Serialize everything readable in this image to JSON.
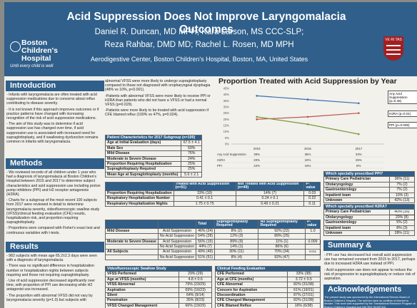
{
  "header": {
    "title": "Acid Suppression Does Not Improve Laryngomalacia Outcomes",
    "authors_line1": "Daniel R. Duncan, MD MPH; Kara Larson, MS CCC-SLP;",
    "authors_line2": "Reza Rahbar, DMD MD; Rachel L. Rosen, MD MPH",
    "affiliation": "Aerodigestive Center, Boston Children's Hospital, Boston, MA, United States",
    "logo_name": "Boston Children's Hospital",
    "logo_tagline": "Until every child is well",
    "crest_text": "VE RI TAS"
  },
  "intro": {
    "heading": "Introduction",
    "paras": [
      "- Infants with laryngomalacia are often treated with acid suppression medications due to concerns about reflux contributing to disease severity.",
      "- It is not known if this approach improves outcomes or if practice patterns have changed with increasing recognition of the risk of acid suppression medications.",
      "- The aim of this study was to determine if acid suppression use has changed over time, if acid suppression use is associated with increased need for supraglottoplasty, and if swallowing dysfunction remains common in infants with laryngomalacia."
    ]
  },
  "methods": {
    "heading": "Methods",
    "paras": [
      "- We reviewed records of all children under 1 year who had a diagnosis of laryngomalacia at Boston Children's Hospital between 2015 and 2017 to determine subject characteristics and acid suppression use including proton pump inhibitors (PPI) and H2 receptor antagonists (H2RA).",
      "- Charts for a subgroup of the most recent 100 subjects from 2017 were reviewed in detail to determine laryngomalacia severity, videofluoroscopic swallow study (VFSS)/clinical feeding evaluation (CFE) results, hospitalization risk, and proportion requiring supraglottoplasty.",
      "- Proportions were compared with Fisher's exact test and continuous variables with t-tests."
    ]
  },
  "results": {
    "heading": "Results",
    "paras": [
      "- 982 subjects with mean age 65.2±2.3 days were seen with a diagnosis of laryngomalacia.",
      "- There was no significant difference in hospitalization number or hospitalization nights between subjects requiring and those not requiring supraglottoplasty.",
      "- Use of acid suppression decreased significantly over time, with proportion of PPI use decreasing while H2 antagonist use increased.",
      "- The proportion with abnormal VFSS did not vary by laryngomalacia severity (p=1.0) but subjects with"
    ]
  },
  "mid_text": {
    "paras": [
      "abnormal VFSS were more likely to undergo supraglottoplasty compared to those not diagnosed with oropharyngeal dysphagia (48% vs 10%, p<0.001).",
      "-Patients with abnormal VFSS were more likely to receive PPI or H2RA than patients who did not have a VFSS or had a normal VFSS (p=0.029).",
      "-Patients were more likely to be treated with acid suppression if CFE blamed reflux (100% vs 47%, p=0.024)."
    ]
  },
  "patient_table": {
    "header": [
      "Patient Characteristics for 2017 Subgroup (n=100)",
      ""
    ],
    "rows": [
      [
        "Age at Initial Evaluation (days)",
        "67.5 ± 4.1"
      ],
      [
        "Male Sex",
        "59%"
      ],
      [
        "Mild Disease",
        "76%"
      ],
      [
        "Moderate to Severe Disease",
        "24%"
      ],
      [
        "Proportion Requiring Hospitalization",
        "25%"
      ],
      [
        "Supraglottoplasty Required",
        "25%"
      ],
      [
        "Mean Age at Supraglottoplasty (months)",
        "5.6 ± 2.1"
      ]
    ]
  },
  "treated_table": {
    "header": [
      "",
      "Treated with Acid Suppression (n=51)",
      "Not Treated with Acid Suppression (n=49)",
      "P-value"
    ],
    "rows": [
      [
        "Proportion Requiring Hospitalization",
        "33% (10)",
        "14% (7)",
        "0.03"
      ],
      [
        "Respiratory Hospitalization Number",
        "0.41 ± 0.1",
        "0.24 ± 0.1",
        "0.22"
      ],
      [
        "Respiratory Hospitalization Nights",
        "1.75 ± 0.75",
        "0.49 ± 0.21",
        "0.11"
      ]
    ]
  },
  "severity_table": {
    "header": [
      "",
      "",
      "Total",
      "Supraglottoplasty Required",
      "No Supraglottoplasty Required",
      "P-value"
    ],
    "rows": [
      [
        "Mild Disease",
        "Acid Suppression",
        "46% (24)",
        "8% (2)",
        "92% (22)",
        "1.0"
      ],
      [
        "",
        "No Acid Suppression",
        "54% (28)",
        "12% (3)",
        "89% (25)",
        ""
      ],
      [
        "Moderate to Severe Disease",
        "Acid Suppression",
        "56% (15)",
        "89% (9)",
        "11% (1)",
        "0.009"
      ],
      [
        "",
        "No Acid Suppression",
        "44% (7)",
        "14% (1)",
        "86% (6)",
        ""
      ],
      [
        "All Subjects",
        "Acid Suppression",
        "49% (49)",
        "30% (11)",
        "70% (34)",
        "0.01"
      ],
      [
        "",
        "No Acid Suppression",
        "51% (51)",
        "8% (4)",
        "92% (47)",
        ""
      ]
    ]
  },
  "vfss_table": {
    "header": [
      "Videofluoroscopic Swallow Study",
      ""
    ],
    "rows": [
      [
        "VFSS Performed",
        "29% (29)"
      ],
      [
        "Age at VFSS (months)",
        "4.8 ± 0.6"
      ],
      [
        "VFSS Abnormal",
        "79% (23/29)"
      ],
      [
        "Aspiration",
        "69% (16/23)"
      ],
      [
        "Silent",
        "64% (9/14)"
      ],
      [
        "Penetration",
        "35% (8/23)"
      ],
      [
        "VFSS Changed Management",
        "66% (19/29)"
      ]
    ]
  },
  "cfe_table": {
    "header": [
      "Clinical Feeding Evaluation",
      ""
    ],
    "rows": [
      [
        "CFE Performed",
        "33% (38)"
      ],
      [
        "Age at CFE (months)",
        "3.72 ± 0.5"
      ],
      [
        "CFE Abnormal",
        "82% (31/38)"
      ],
      [
        "Concern for Aspiration",
        "61% (19/31)"
      ],
      [
        "Discoordination",
        "87% (27/31)"
      ],
      [
        "CFE Changed Management",
        "82% (31/38)"
      ],
      [
        "CFE Blamed Reflux",
        "16% (6/38)"
      ]
    ]
  },
  "chart_data": {
    "type": "line",
    "title": "Proportion Treated with Acid Suppression by Year",
    "categories": [
      "2015",
      "2016",
      "2017"
    ],
    "series": [
      {
        "name": "Any Acid Suppression (p=0.46)",
        "table_label": "Any Acid Suppression",
        "values": [
          39,
          36,
          33
        ],
        "color": "#3a6fb0"
      },
      {
        "name": "H2RA (p=0.01)",
        "table_label": "H2RA",
        "values": [
          20,
          22,
          25
        ],
        "color": "#c0504d"
      },
      {
        "name": "PPI (p=0.009)",
        "table_label": "PPI",
        "values": [
          22,
          16,
          8
        ],
        "color": "#7a9a3a"
      }
    ],
    "table_values": [
      [
        "39%",
        "36%",
        "33%"
      ],
      [
        "20%",
        "22%",
        "25%"
      ],
      [
        "22%",
        "16%",
        "8%"
      ]
    ],
    "y_ticks": [
      "0%",
      "5%",
      "10%",
      "15%",
      "20%",
      "25%",
      "30%",
      "35%",
      "40%",
      "45%"
    ],
    "ylim": [
      0,
      45
    ],
    "grid": false
  },
  "ppi_table": {
    "header": [
      "Which specialty prescribed PPI?",
      ""
    ],
    "rows": [
      [
        "Primary Care Pediatrician",
        "36% (11)"
      ],
      [
        "Otolaryngology",
        "7% (2)"
      ],
      [
        "Gastroenterology",
        "7% (2)"
      ],
      [
        "Inpatient team",
        "10% (3)"
      ],
      [
        "Unknown",
        "42% (13)"
      ]
    ]
  },
  "h2ra_table": {
    "header": [
      "Which specialty prescribed H2RA?",
      ""
    ],
    "rows": [
      [
        "Primary Care Pediatrician",
        "40% (16)"
      ],
      [
        "Otolaryngology",
        "20% (8)"
      ],
      [
        "Gastroenterology",
        "5% (2)"
      ],
      [
        "Inpatient team",
        "8% (3)"
      ],
      [
        "Unknown",
        "28% (11)"
      ]
    ]
  },
  "summary": {
    "heading": "Summary & Conclusions",
    "paras": [
      "- PPI use has decreased but overall acid suppression use has remained constant from 2015 to 2017, perhaps due to increased H2RA use instead of PPI.",
      "- Acid suppression use does not appear to reduce the risk of progression to supraglottoplasty or reduce risk of aspiration."
    ]
  },
  "acknowledgements": {
    "heading": "Acknowledgements",
    "body": "The present study was sponsored by the International Reeves Board of Boston Children's Hospital. The authors have no conflicts of interest to declare. This work was supported by the Translational Research Program at Boston Children's Hospital and NIH R01 DK097112."
  }
}
